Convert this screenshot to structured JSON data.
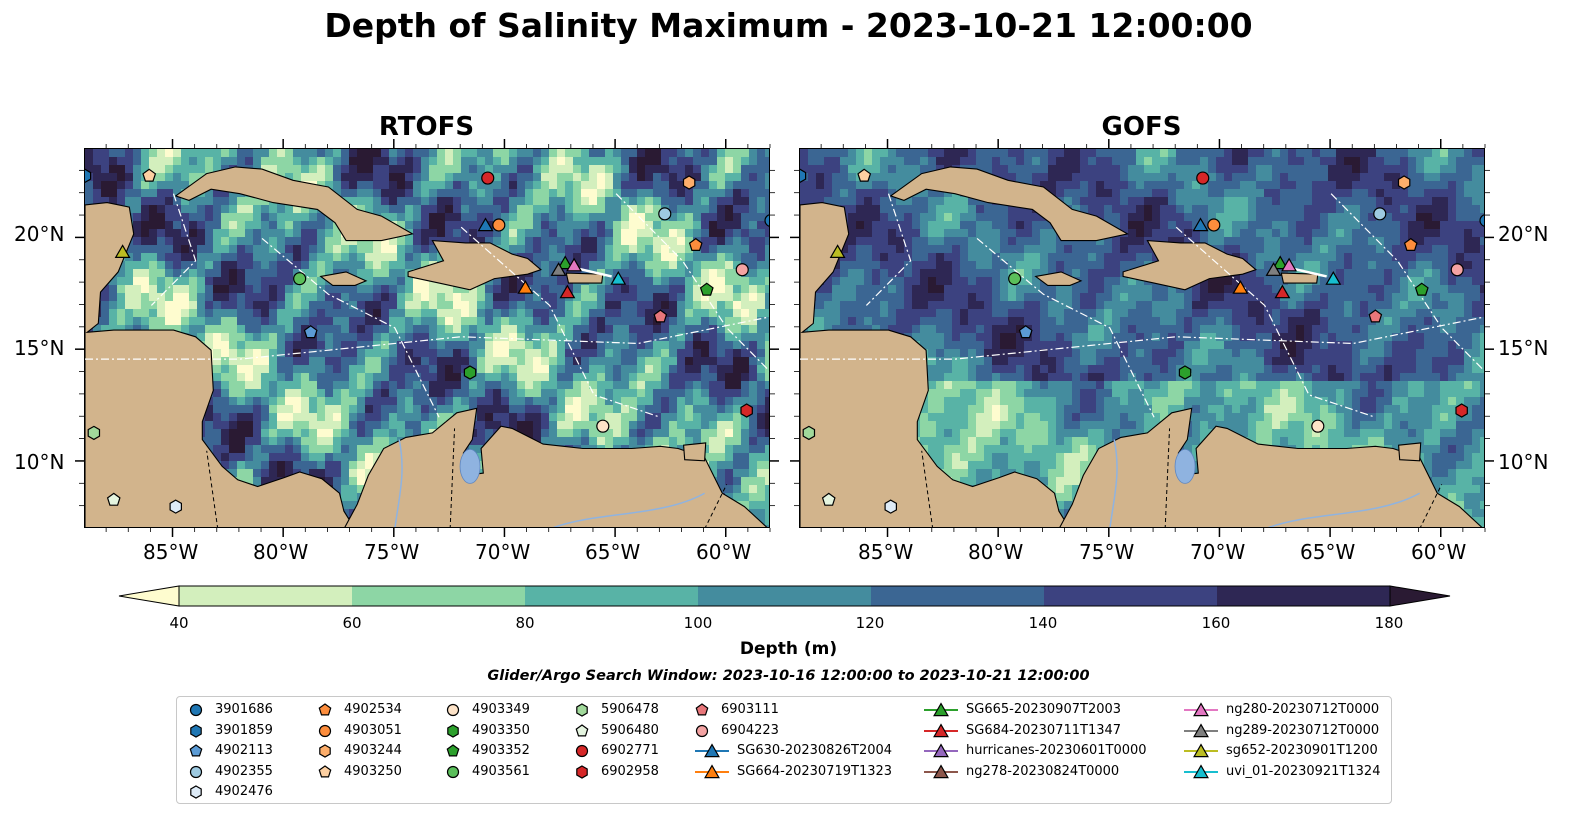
{
  "title": "Depth of Salinity Maximum - 2023-10-21 12:00:00",
  "panels": [
    {
      "title": "RTOFS",
      "palette_shift": 0
    },
    {
      "title": "GOFS",
      "palette_shift": 1
    }
  ],
  "lon_ticks": [
    "85°W",
    "80°W",
    "75°W",
    "70°W",
    "65°W",
    "60°W"
  ],
  "lat_ticks": [
    "20°N",
    "15°N",
    "10°N"
  ],
  "map_extent": {
    "lon": [
      -89,
      -58
    ],
    "lat": [
      7,
      24
    ]
  },
  "colorbar": {
    "label": "Depth (m)",
    "ticks": [
      "40",
      "60",
      "80",
      "100",
      "120",
      "140",
      "160",
      "180"
    ],
    "colors": [
      "#fefccf",
      "#d3efbd",
      "#8dd6a5",
      "#58b3a6",
      "#448c9e",
      "#3b6693",
      "#3c4280",
      "#2e2754",
      "#2a1a33"
    ],
    "extend": "both"
  },
  "search_window": "Glider/Argo Search Window: 2023-10-16 12:00:00 to 2023-10-21 12:00:00",
  "land_color": "#d2b48c",
  "legend": [
    [
      {
        "label": "3901686",
        "shape": "circle",
        "color": "#1f77b4",
        "lon": -58,
        "lat": 20.8
      },
      {
        "label": "3901859",
        "shape": "hexagon",
        "color": "#1f77b4",
        "lon": -89,
        "lat": 22.8
      },
      {
        "label": "4902113",
        "shape": "pentagon",
        "color": "#5b9bd5",
        "lon": -78.8,
        "lat": 15.8
      },
      {
        "label": "4902355",
        "shape": "circle",
        "color": "#9ecae1",
        "lon": -62.8,
        "lat": 21.1
      },
      {
        "label": "4902476",
        "shape": "hexagon",
        "color": "#deebf7",
        "lon": -84.9,
        "lat": 8.0
      }
    ],
    [
      {
        "label": "4902534",
        "shape": "pentagon",
        "color": "#fd8d3c",
        "lon": -61.4,
        "lat": 19.7
      },
      {
        "label": "4903051",
        "shape": "circle",
        "color": "#fd8d3c",
        "lon": -70.3,
        "lat": 20.6
      },
      {
        "label": "4903244",
        "shape": "hexagon",
        "color": "#fdae6b",
        "lon": -61.7,
        "lat": 22.5
      },
      {
        "label": "4903250",
        "shape": "pentagon",
        "color": "#fdd0a2",
        "lon": -86.1,
        "lat": 22.8
      }
    ],
    [
      {
        "label": "4903349",
        "shape": "circle",
        "color": "#fde3c8",
        "lon": -65.6,
        "lat": 11.6
      },
      {
        "label": "4903350",
        "shape": "hexagon",
        "color": "#2ca02c",
        "lon": -71.6,
        "lat": 14.0
      },
      {
        "label": "4903352",
        "shape": "pentagon",
        "color": "#2ca02c",
        "lon": -60.9,
        "lat": 17.7
      },
      {
        "label": "4903561",
        "shape": "circle",
        "color": "#5bbf5b",
        "lon": -79.3,
        "lat": 18.2
      }
    ],
    [
      {
        "label": "5906478",
        "shape": "hexagon",
        "color": "#a1d99b",
        "lon": -88.6,
        "lat": 11.3
      },
      {
        "label": "5906480",
        "shape": "pentagon",
        "color": "#e5f5e0",
        "lon": -87.7,
        "lat": 8.3
      },
      {
        "label": "6902771",
        "shape": "circle",
        "color": "#d62728",
        "lon": -70.8,
        "lat": 22.7
      },
      {
        "label": "6902958",
        "shape": "hexagon",
        "color": "#d62728",
        "lon": -59.1,
        "lat": 12.3
      }
    ],
    [
      {
        "label": "6903111",
        "shape": "pentagon",
        "color": "#e8767a",
        "lon": -63.0,
        "lat": 16.5
      },
      {
        "label": "6904223",
        "shape": "circle",
        "color": "#f4a3a3",
        "lon": -59.3,
        "lat": 18.6
      },
      {
        "label": "SG630-20230826T2004",
        "shape": "triangle",
        "color": "#1f77b4",
        "line": true,
        "lon": -70.9,
        "lat": 20.6
      },
      {
        "label": "SG664-20230719T1323",
        "shape": "triangle",
        "color": "#ff7f0e",
        "line": true,
        "lon": -69.1,
        "lat": 17.8
      }
    ],
    [
      {
        "label": "SG665-20230907T2003",
        "shape": "triangle",
        "color": "#2ca02c",
        "line": true,
        "lon": -67.3,
        "lat": 18.9
      },
      {
        "label": "SG684-20230711T1347",
        "shape": "triangle",
        "color": "#d62728",
        "line": true,
        "lon": -67.2,
        "lat": 17.6
      },
      {
        "label": "hurricanes-20230601T0000",
        "shape": "triangle",
        "color": "#9467bd",
        "line": true
      },
      {
        "label": "ng278-20230824T0000",
        "shape": "triangle",
        "color": "#8c564b",
        "line": true
      }
    ],
    [
      {
        "label": "ng280-20230712T0000",
        "shape": "triangle",
        "color": "#e377c2",
        "line": true,
        "lon": -66.9,
        "lat": 18.8
      },
      {
        "label": "ng289-20230712T0000",
        "shape": "triangle",
        "color": "#7f7f7f",
        "line": true,
        "lon": -67.6,
        "lat": 18.6
      },
      {
        "label": "sg652-20230901T1200",
        "shape": "triangle",
        "color": "#bcbd22",
        "line": true,
        "lon": -87.3,
        "lat": 19.4
      },
      {
        "label": "uvi_01-20230921T1324",
        "shape": "triangle",
        "color": "#17becf",
        "line": true,
        "lon": -64.9,
        "lat": 18.2
      }
    ]
  ]
}
